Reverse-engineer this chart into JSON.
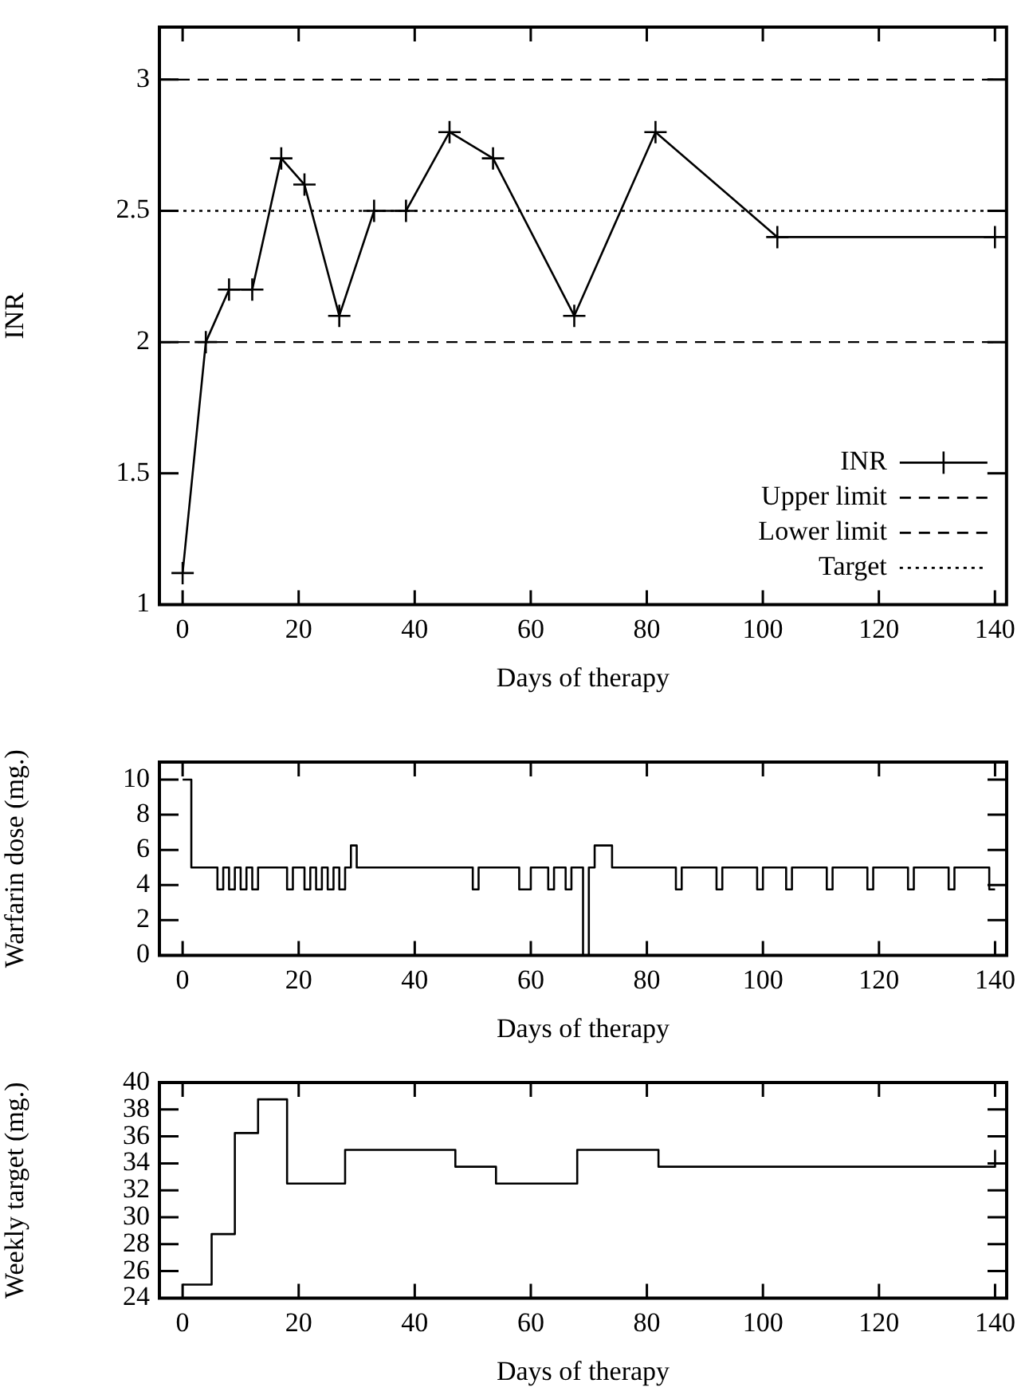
{
  "chart_data": [
    {
      "type": "line",
      "xlabel": "Days of therapy",
      "ylabel": "INR",
      "xlim": [
        -4,
        142
      ],
      "xticks": [
        0,
        20,
        40,
        60,
        80,
        100,
        120,
        140
      ],
      "ylim": [
        1,
        3.2
      ],
      "yticks": [
        1,
        1.5,
        2,
        2.5,
        3
      ],
      "grid": false,
      "legend": "bottom right",
      "marker": "cross",
      "line_style": "solid",
      "series": [
        {
          "name": "INR",
          "color": "#000000",
          "x": [
            0,
            4,
            8,
            12,
            17,
            21,
            27,
            33,
            38.5,
            46,
            53.5,
            67.5,
            81.5,
            102.5,
            140
          ],
          "values": [
            1.12,
            2,
            2.2,
            2.2,
            2.7,
            2.6,
            2.1,
            2.5,
            2.5,
            2.8,
            2.7,
            2.1,
            2.8,
            2.4,
            2.4
          ]
        }
      ],
      "ref_lines": [
        {
          "axis": "y",
          "value": 3,
          "label": "Upper limit",
          "color": "#000000",
          "line_style": "dashed"
        },
        {
          "axis": "y",
          "value": 2,
          "label": "Lower limit",
          "color": "#000000",
          "line_style": "dashed"
        },
        {
          "axis": "y",
          "value": 2.5,
          "label": "Target",
          "color": "#000000",
          "line_style": "dotted"
        }
      ]
    },
    {
      "type": "step",
      "xlabel": "Days of therapy",
      "ylabel": "Warfarin dose (mg.)",
      "xlim": [
        -4,
        142
      ],
      "xticks": [
        0,
        20,
        40,
        60,
        80,
        100,
        120,
        140
      ],
      "ylim": [
        0,
        11
      ],
      "yticks": [
        0,
        2,
        4,
        6,
        8,
        10
      ],
      "grid": false,
      "legend": false,
      "marker": "none",
      "line_style": "solid",
      "series": [
        {
          "color": "#000000",
          "x": [
            0,
            1.5,
            6,
            7,
            8,
            9,
            10,
            11,
            12,
            13,
            18,
            19,
            21,
            22,
            23,
            24,
            25,
            26,
            27,
            28,
            29,
            30,
            50,
            51,
            58,
            60,
            63,
            64,
            66,
            67,
            69,
            70,
            71,
            74,
            85,
            86,
            92,
            93,
            99,
            100,
            104,
            105,
            111,
            112,
            118,
            119,
            125,
            126,
            132,
            133,
            139,
            140
          ],
          "values": [
            10,
            5,
            3.75,
            5,
            3.75,
            5,
            3.75,
            5,
            3.75,
            5,
            3.75,
            5,
            3.75,
            5,
            3.75,
            5,
            3.75,
            5,
            3.75,
            5,
            6.25,
            5,
            3.75,
            5,
            3.75,
            5,
            3.75,
            5,
            3.75,
            5,
            0,
            5,
            6.25,
            5,
            3.75,
            5,
            3.75,
            5,
            3.75,
            5,
            3.75,
            5,
            3.75,
            5,
            3.75,
            5,
            3.75,
            5,
            3.75,
            5,
            3.75,
            3.75
          ]
        }
      ]
    },
    {
      "type": "step",
      "xlabel": "Days of therapy",
      "ylabel": "Weekly target (mg.)",
      "xlim": [
        -4,
        142
      ],
      "xticks": [
        0,
        20,
        40,
        60,
        80,
        100,
        120,
        140
      ],
      "ylim": [
        24,
        40
      ],
      "yticks": [
        24,
        26,
        28,
        30,
        32,
        34,
        36,
        38,
        40
      ],
      "grid": false,
      "legend": false,
      "marker": "none",
      "line_style": "solid",
      "series": [
        {
          "color": "#000000",
          "x": [
            0,
            5,
            9,
            13,
            18,
            28,
            47,
            54,
            68,
            82,
            140
          ],
          "values": [
            25,
            28.75,
            36.25,
            38.75,
            32.5,
            35,
            33.75,
            32.5,
            35,
            33.75,
            35
          ]
        }
      ]
    }
  ]
}
